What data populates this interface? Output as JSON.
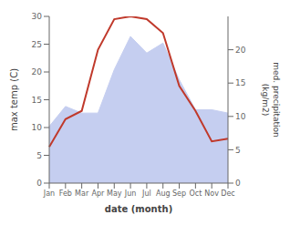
{
  "chart_data": {
    "type": "line",
    "categories": [
      "Jan",
      "Feb",
      "Mar",
      "Apr",
      "May",
      "Jun",
      "Jul",
      "Aug",
      "Sep",
      "Oct",
      "Nov",
      "Dec"
    ],
    "xlabel": "date (month)",
    "ylabel": "max temp (C)",
    "y2label": "med. precipitation\n(kg/m2)",
    "series": [
      {
        "type": "area",
        "axis": "y2",
        "color": "#c5cef0",
        "values": [
          8.5,
          11.5,
          10.5,
          10.5,
          17.0,
          22.0,
          19.5,
          21.0,
          15.5,
          11.0,
          11.0,
          10.5
        ]
      },
      {
        "type": "line",
        "color": "#c0392b",
        "values": [
          6.5,
          11.5,
          13.0,
          24.0,
          29.5,
          30.0,
          29.5,
          27.0,
          17.5,
          13.0,
          7.5,
          8.0
        ]
      }
    ],
    "ylim": [
      0,
      30
    ],
    "yticks": [
      0,
      5,
      10,
      15,
      20,
      25,
      30
    ],
    "y2lim": [
      0,
      25
    ],
    "y2ticks": [
      0,
      5,
      10,
      15,
      20
    ],
    "grid": false
  }
}
